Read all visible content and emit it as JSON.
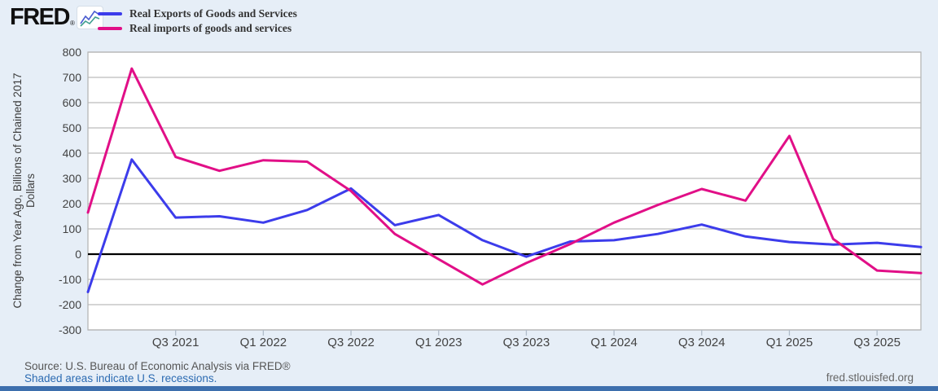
{
  "header": {
    "logo_text": "FRED",
    "logo_registered": "®",
    "legend": [
      {
        "label": "Real Exports of Goods and Services"
      },
      {
        "label": "Real imports of goods and services"
      }
    ]
  },
  "chart_data": {
    "type": "line",
    "ylabel": "Change from Year Ago, Billions of Chained 2017 Dollars",
    "ylabel_line1": "Change from Year Ago, Billions of Chained 2017",
    "ylabel_line2": "Dollars",
    "ylim": [
      -300,
      800
    ],
    "y_ticks": [
      800,
      700,
      600,
      500,
      400,
      300,
      200,
      100,
      0,
      -100,
      -200,
      -300
    ],
    "grid": true,
    "legend_position": "top-left",
    "categories": [
      "Q1 2021",
      "Q2 2021",
      "Q3 2021",
      "Q4 2021",
      "Q1 2022",
      "Q2 2022",
      "Q3 2022",
      "Q4 2022",
      "Q1 2023",
      "Q2 2023",
      "Q3 2023",
      "Q4 2023",
      "Q1 2024",
      "Q2 2024",
      "Q3 2024",
      "Q4 2024",
      "Q1 2025",
      "Q2 2025",
      "Q3 2025",
      "Q4 2025"
    ],
    "x_ticks": [
      {
        "label": "Q3 2021",
        "index": 2
      },
      {
        "label": "Q1 2022",
        "index": 4
      },
      {
        "label": "Q3 2022",
        "index": 6
      },
      {
        "label": "Q1 2023",
        "index": 8
      },
      {
        "label": "Q3 2023",
        "index": 10
      },
      {
        "label": "Q1 2024",
        "index": 12
      },
      {
        "label": "Q3 2024",
        "index": 14
      },
      {
        "label": "Q1 2025",
        "index": 16
      },
      {
        "label": "Q3 2025",
        "index": 18
      }
    ],
    "series": [
      {
        "name": "Real Exports of Goods and Services",
        "color": "#3c3ceb",
        "values": [
          -150,
          375,
          145,
          150,
          125,
          175,
          260,
          115,
          155,
          55,
          -10,
          50,
          55,
          80,
          117,
          70,
          48,
          38,
          45,
          28
        ]
      },
      {
        "name": "Real imports of goods and services",
        "color": "#e10f87",
        "values": [
          165,
          735,
          385,
          330,
          372,
          366,
          250,
          80,
          -20,
          -120,
          -35,
          40,
          125,
          195,
          258,
          212,
          468,
          60,
          -65,
          -75
        ]
      }
    ],
    "zero_line_color": "#000000",
    "gridline_color": "#bcbcbc",
    "plot_background": "#ffffff"
  },
  "footer": {
    "source": "Source: U.S. Bureau of Economic Analysis via FRED®",
    "recessions_note": "Shaded areas indicate U.S. recessions.",
    "site_url": "fred.stlouisfed.org"
  }
}
